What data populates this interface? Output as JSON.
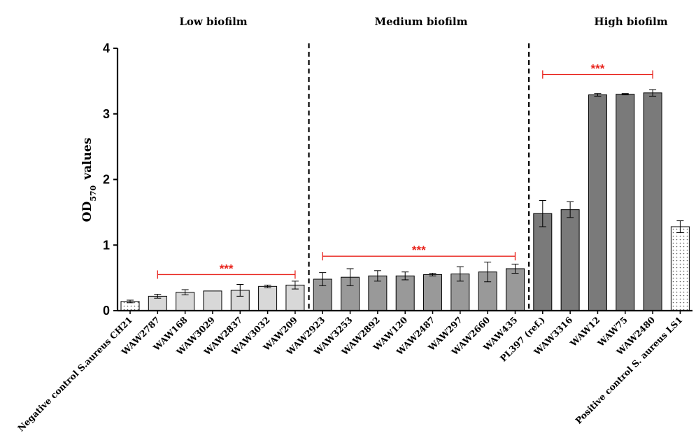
{
  "chart_data": {
    "type": "bar",
    "ylabel": "OD",
    "ylabel_sub": "570",
    "ylabel_suffix": "values",
    "ylim": [
      0,
      4
    ],
    "yticks": [
      "0",
      "1",
      "2",
      "3",
      "4"
    ],
    "grid": false,
    "categories": [
      "Negative control S.aureus CH21",
      "WAW2787",
      "WAW168",
      "WAW3029",
      "WAW2837",
      "WAW3032",
      "WAW209",
      "WAW2923",
      "WAW3253",
      "WAW2892",
      "WAW120",
      "WAW2487",
      "WAW297",
      "WAW2660",
      "WAW435",
      "PL397 (ref.)",
      "WAW3316",
      "WAW12",
      "WAW75",
      "WAW2480",
      "Positive control S. aureus LS1"
    ],
    "values": [
      0.14,
      0.22,
      0.28,
      0.3,
      0.31,
      0.37,
      0.39,
      0.48,
      0.51,
      0.53,
      0.53,
      0.55,
      0.56,
      0.59,
      0.64,
      1.48,
      1.54,
      3.29,
      3.3,
      3.32,
      1.28
    ],
    "errors": [
      0.02,
      0.03,
      0.04,
      0.0,
      0.09,
      0.02,
      0.06,
      0.1,
      0.13,
      0.08,
      0.06,
      0.02,
      0.11,
      0.15,
      0.07,
      0.2,
      0.12,
      0.02,
      0.01,
      0.05,
      0.09
    ],
    "fill_kinds": [
      "dotted",
      "light",
      "light",
      "light",
      "light",
      "light",
      "light",
      "medium",
      "medium",
      "medium",
      "medium",
      "medium",
      "medium",
      "medium",
      "medium",
      "dark",
      "dark",
      "dark",
      "dark",
      "dark",
      "dotted"
    ],
    "colors": {
      "light": "#d8d8d8",
      "medium": "#999999",
      "dark": "#7a7a7a",
      "dotted_bg": "#ffffff",
      "dotted_dot": "#555555",
      "significance": "#e8231c"
    },
    "groups": [
      {
        "label": "Low biofilm",
        "from": 1,
        "to": 6
      },
      {
        "label": "Medium biofilm",
        "from": 7,
        "to": 14
      },
      {
        "label": "High biofilm",
        "from": 15,
        "to": 19
      }
    ],
    "group_dividers_after": [
      6,
      14
    ],
    "significance": [
      {
        "from": 1,
        "to": 6,
        "y": 0.55,
        "label": "***"
      },
      {
        "from": 7,
        "to": 14,
        "y": 0.83,
        "label": "***"
      },
      {
        "from": 15,
        "to": 19,
        "y": 3.6,
        "label": "***"
      }
    ]
  }
}
